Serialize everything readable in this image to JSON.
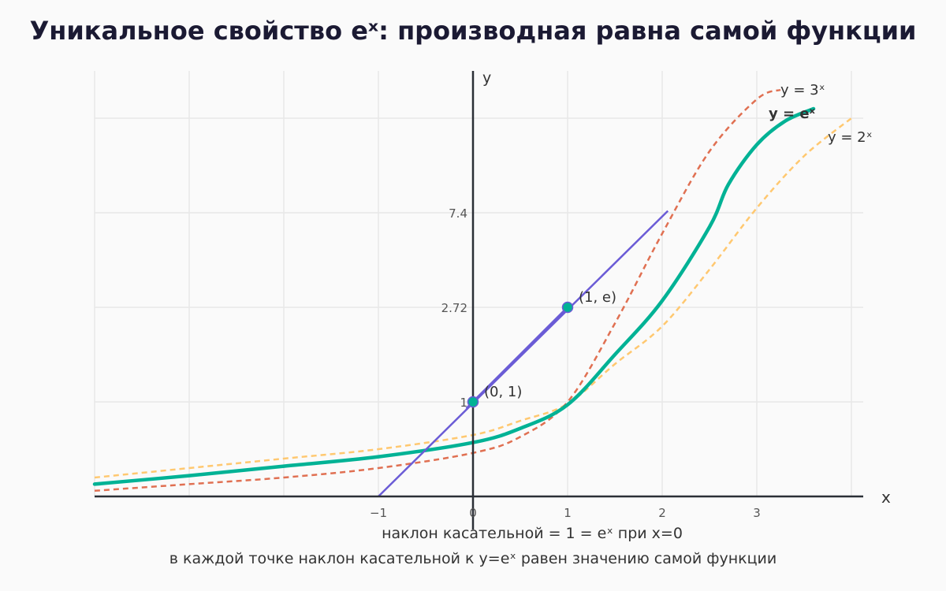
{
  "title": "Уникальное свойство eˣ: производная равна самой функции",
  "footnote": "в каждой точке наклон касательной к y=eˣ равен значению самой функции",
  "colors": {
    "ex": "#00b295",
    "three": "#e07052",
    "two": "#ffc870",
    "tangent": "#6b5cd6",
    "axis": "#2b2f36",
    "grid": "#e8e8e8",
    "tick": "#555555"
  },
  "chart_data": {
    "type": "line",
    "title": "Уникальное свойство eˣ: производная равна самой функции",
    "xlabel": "x",
    "ylabel": "y",
    "xlim": [
      -4,
      4.1
    ],
    "ylim": [
      0,
      4.5
    ],
    "x_ticks": [
      {
        "value": -1,
        "label": "−1"
      },
      {
        "value": 0,
        "label": "0"
      },
      {
        "value": 1,
        "label": "1"
      },
      {
        "value": 2,
        "label": "2"
      },
      {
        "value": 3,
        "label": "3"
      }
    ],
    "y_ticks": [
      {
        "value": 1,
        "label": "1"
      },
      {
        "value": 2,
        "label": "2.72"
      },
      {
        "value": 3,
        "label": "7.4"
      }
    ],
    "grid": true,
    "series": [
      {
        "name": "y = 2ˣ",
        "style": "dashed",
        "color": "#ffc870",
        "x": [
          -4,
          -3,
          -2,
          -1,
          0,
          0.5,
          1,
          1.5,
          2,
          2.5,
          3,
          3.5,
          4
        ],
        "y": [
          0.2,
          0.3,
          0.4,
          0.5,
          0.65,
          0.8,
          0.98,
          1.4,
          1.8,
          2.4,
          3.05,
          3.6,
          4.0
        ]
      },
      {
        "name": "y = eˣ",
        "style": "solid",
        "color": "#00b295",
        "x": [
          -4,
          -3,
          -2,
          -1,
          0,
          0.5,
          1,
          1.5,
          2,
          2.5,
          2.7,
          3,
          3.3,
          3.6
        ],
        "y": [
          0.13,
          0.22,
          0.32,
          0.42,
          0.57,
          0.72,
          0.97,
          1.5,
          2.07,
          2.85,
          3.3,
          3.72,
          3.97,
          4.1
        ]
      },
      {
        "name": "y = 3ˣ",
        "style": "dashed",
        "color": "#e07052",
        "x": [
          -4,
          -3,
          -2,
          -1,
          0,
          0.5,
          1,
          1.5,
          2,
          2.5,
          3,
          3.25
        ],
        "y": [
          0.06,
          0.13,
          0.2,
          0.3,
          0.46,
          0.63,
          1.0,
          1.83,
          2.78,
          3.65,
          4.2,
          4.3
        ]
      }
    ],
    "tangent": {
      "x": [
        -1,
        2.06
      ],
      "y": [
        0,
        3.02
      ]
    },
    "points": [
      {
        "x": 0,
        "y": 1,
        "label": "(0, 1)"
      },
      {
        "x": 1,
        "y": 2,
        "label": "(1, e)"
      }
    ],
    "annotations": [
      {
        "text": "наклон касательной = 1 = eˣ при x=0"
      }
    ]
  }
}
